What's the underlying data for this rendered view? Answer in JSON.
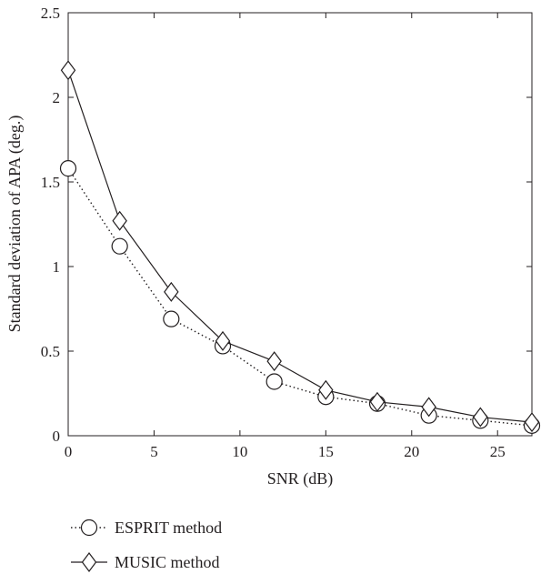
{
  "chart_data": {
    "type": "line",
    "title": "",
    "xlabel": "SNR (dB)",
    "ylabel": "Standard deviation of APA (deg.)",
    "xlim": [
      0,
      27
    ],
    "ylim": [
      0,
      2.5
    ],
    "xticks": [
      0,
      5,
      10,
      15,
      20,
      25
    ],
    "yticks": [
      0,
      0.5,
      1,
      1.5,
      2,
      2.5
    ],
    "xtick_labels": [
      "0",
      "5",
      "10",
      "15",
      "20",
      "25"
    ],
    "ytick_labels": [
      "0",
      "0.5",
      "1",
      "1.5",
      "2",
      "2.5"
    ],
    "grid": false,
    "legend_position": "bottom-left, below plot",
    "series": [
      {
        "name": "ESPRIT method",
        "line_style": "dotted",
        "marker": "circle",
        "x": [
          0,
          3,
          6,
          9,
          12,
          15,
          18,
          21,
          24,
          27
        ],
        "values": [
          1.58,
          1.12,
          0.69,
          0.53,
          0.32,
          0.23,
          0.19,
          0.12,
          0.09,
          0.06
        ]
      },
      {
        "name": "MUSIC method",
        "line_style": "solid",
        "marker": "diamond",
        "x": [
          0,
          3,
          6,
          9,
          12,
          15,
          18,
          21,
          24,
          27
        ],
        "values": [
          2.16,
          1.27,
          0.85,
          0.56,
          0.44,
          0.27,
          0.2,
          0.17,
          0.11,
          0.08
        ]
      }
    ]
  }
}
